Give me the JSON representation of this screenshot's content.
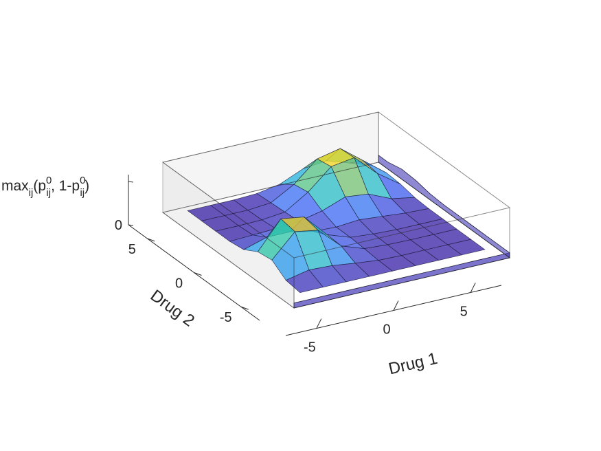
{
  "chart_data": {
    "type": "surface3d",
    "xlabel": "Drug 1",
    "ylabel": "Drug 2",
    "zlabel": {
      "base": "max",
      "sub": "ij",
      "open": "(p",
      "sup1": "0",
      "mid": ", 1-p",
      "sup2": "0",
      "close": ")"
    },
    "x_ticks": [
      -5,
      0,
      5
    ],
    "y_ticks": [
      -5,
      0,
      5
    ],
    "z_ticks": [
      0
    ],
    "x_tick_labels": [
      "-5",
      "0",
      "5"
    ],
    "y_tick_labels": [
      "-5",
      "0",
      "5"
    ],
    "z_tick_labels": [
      "0"
    ],
    "xlim": [
      -7,
      7
    ],
    "ylim": [
      -7,
      7
    ],
    "zlim": [
      0,
      1
    ],
    "grid": false,
    "colormap": "parula",
    "colormap_stops": [
      "#3e26a8",
      "#4467f4",
      "#2bb2e8",
      "#33c7a0",
      "#eaba30",
      "#f5e51f"
    ],
    "bounding_box_color": "#b3b3b3",
    "x": [
      -6,
      -4.5,
      -3,
      -1.5,
      0,
      1.5,
      3,
      4.5,
      6
    ],
    "y": [
      -6,
      -4.5,
      -3,
      -1.5,
      0,
      1.5,
      3,
      4.5,
      6
    ],
    "z": [
      [
        0.1,
        0.1,
        0.1,
        0.1,
        0.1,
        0.1,
        0.1,
        0.1,
        0.1
      ],
      [
        0.14,
        0.24,
        0.22,
        0.16,
        0.11,
        0.1,
        0.1,
        0.1,
        0.1
      ],
      [
        0.34,
        0.8,
        0.72,
        0.3,
        0.14,
        0.11,
        0.1,
        0.1,
        0.1
      ],
      [
        0.3,
        0.85,
        0.78,
        0.32,
        0.16,
        0.12,
        0.1,
        0.1,
        0.1
      ],
      [
        0.14,
        0.28,
        0.28,
        0.18,
        0.16,
        0.2,
        0.16,
        0.12,
        0.1
      ],
      [
        0.1,
        0.12,
        0.14,
        0.18,
        0.28,
        0.45,
        0.4,
        0.2,
        0.12
      ],
      [
        0.1,
        0.1,
        0.11,
        0.16,
        0.45,
        0.85,
        0.92,
        0.5,
        0.18
      ],
      [
        0.1,
        0.1,
        0.1,
        0.14,
        0.4,
        0.8,
        0.9,
        0.55,
        0.2
      ],
      [
        0.1,
        0.1,
        0.1,
        0.12,
        0.2,
        0.4,
        0.45,
        0.3,
        0.14
      ]
    ]
  }
}
